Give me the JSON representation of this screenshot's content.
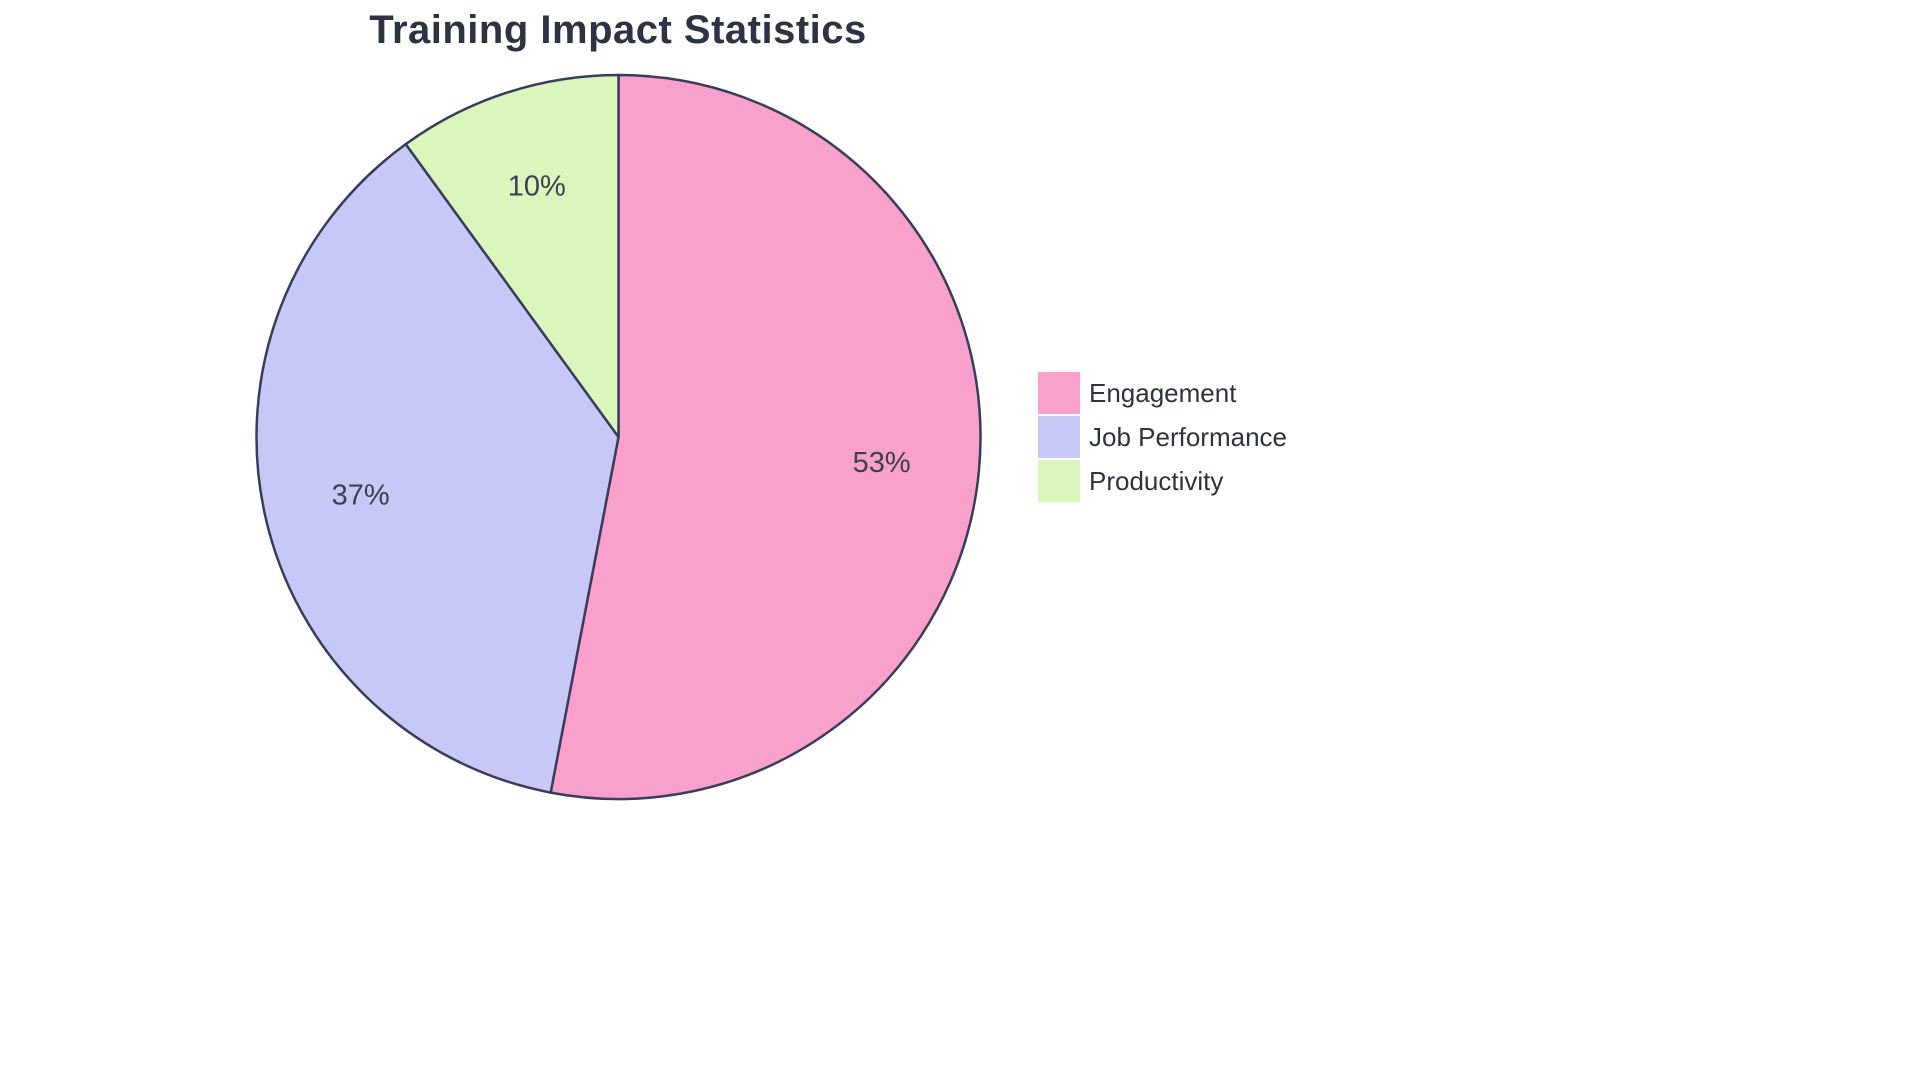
{
  "chart_data": {
    "type": "pie",
    "title": "Training Impact Statistics",
    "labels": [
      "Engagement",
      "Job Performance",
      "Productivity"
    ],
    "values": [
      53,
      37,
      10
    ],
    "unit": "%",
    "slice_labels": [
      "53%",
      "37%",
      "10%"
    ],
    "colors": [
      "#F9A0CC",
      "#C8C8F7",
      "#DBF6BD"
    ],
    "stroke_color": "#383D5B",
    "label_color": "#3c4152",
    "legend_position": "right",
    "start_angle_deg": -90,
    "direction": "clockwise"
  }
}
